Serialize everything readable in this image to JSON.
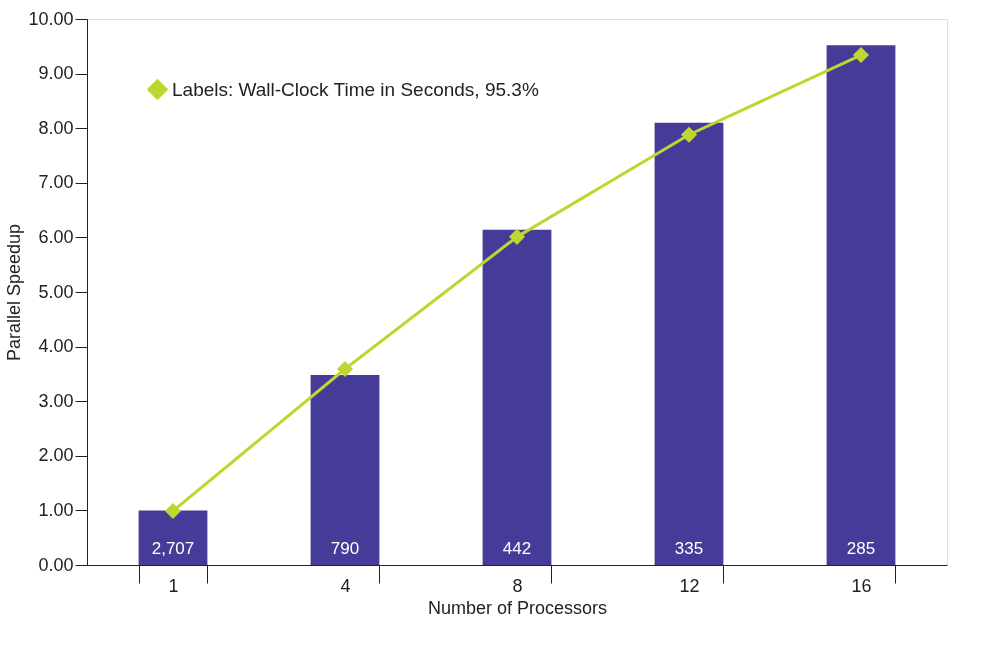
{
  "chart_data": {
    "type": "bar",
    "xlabel": "Number of Processors",
    "ylabel": "Parallel Speedup",
    "categories": [
      "1",
      "4",
      "8",
      "12",
      "16"
    ],
    "series": [
      {
        "color": "#443c98",
        "values": [
          1.0,
          3.48,
          6.14,
          8.1,
          9.52
        ]
      },
      {
        "type": "line",
        "name": "Labels: Wall-Clock Time in Seconds, 95.3%",
        "color": "#bfd630",
        "values": [
          0.99,
          3.59,
          6.01,
          7.88,
          9.34
        ],
        "marker": "diamond"
      }
    ],
    "ylim": [
      0,
      10
    ],
    "yticks": [
      {
        "value": 0,
        "label": "0.00"
      },
      {
        "value": 1,
        "label": "1.00"
      },
      {
        "value": 2,
        "label": "2.00"
      },
      {
        "value": 3,
        "label": "3.00"
      },
      {
        "value": 4,
        "label": "4.00"
      },
      {
        "value": 5,
        "label": "5.00"
      },
      {
        "value": 6,
        "label": "6.00"
      },
      {
        "value": 7,
        "label": "7.00"
      },
      {
        "value": 8,
        "label": "8.00"
      },
      {
        "value": 9,
        "label": "9.00"
      },
      {
        "value": 10,
        "label": "10.00"
      }
    ],
    "annotations": [
      {
        "text": "2,707",
        "x": "1",
        "y": 0
      },
      {
        "text": "790",
        "x": "4",
        "y": 0
      },
      {
        "text": "442",
        "x": "8",
        "y": 0
      },
      {
        "text": "335",
        "x": "12",
        "y": 0
      },
      {
        "text": "285",
        "x": "16",
        "y": 0
      }
    ],
    "grid": false,
    "legend": "top left"
  }
}
